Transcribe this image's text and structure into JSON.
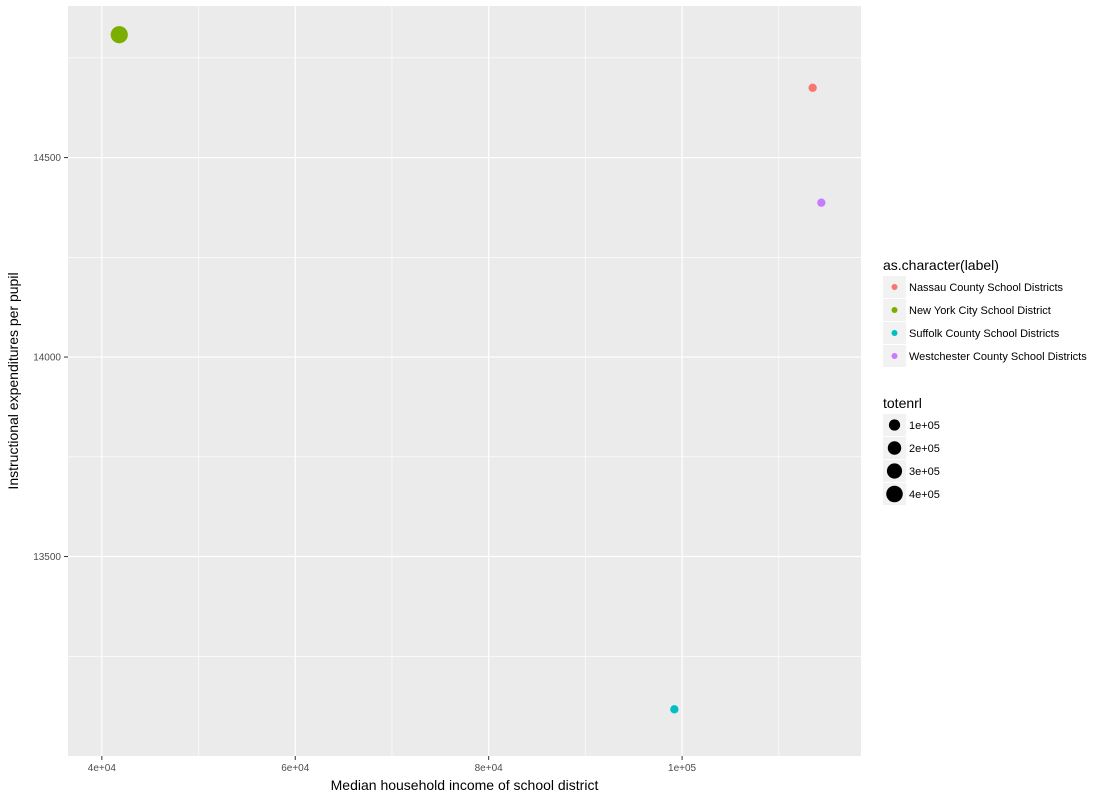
{
  "chart_data": {
    "type": "scatter",
    "title": "",
    "xlabel": "Median household income of school district",
    "ylabel": "Instructional expenditures per pupil",
    "xlim": [
      36500,
      118500
    ],
    "ylim": [
      13000,
      14880
    ],
    "x_ticks": [
      40000,
      60000,
      80000,
      100000
    ],
    "x_tick_labels": [
      "4e+04",
      "6e+04",
      "8e+04",
      "1e+05"
    ],
    "x_minor_ticks": [
      50000,
      70000,
      90000,
      110000
    ],
    "y_ticks": [
      13500,
      14000,
      14500
    ],
    "y_tick_labels": [
      "13500",
      "14000",
      "14500"
    ],
    "y_minor_ticks": [
      13250,
      13750,
      14250,
      14750
    ],
    "grid": true,
    "points": [
      {
        "label": "Nassau County School Districts",
        "x": 113500,
        "y": 14675,
        "totenrl": 20000,
        "color": "#F8766D"
      },
      {
        "label": "New York City School District",
        "x": 41800,
        "y": 14808,
        "totenrl": 450000,
        "color": "#7CAE00"
      },
      {
        "label": "Suffolk County School Districts",
        "x": 99200,
        "y": 13117,
        "totenrl": 20000,
        "color": "#00BFC4"
      },
      {
        "label": "Westchester County School Districts",
        "x": 114400,
        "y": 14387,
        "totenrl": 20000,
        "color": "#C77CFF"
      }
    ],
    "legend_color": {
      "title": "as.character(label)",
      "position": "right",
      "entries": [
        {
          "label": "Nassau County School Districts",
          "color": "#F8766D"
        },
        {
          "label": "New York City School District",
          "color": "#7CAE00"
        },
        {
          "label": "Suffolk County School Districts",
          "color": "#00BFC4"
        },
        {
          "label": "Westchester County School Districts",
          "color": "#C77CFF"
        }
      ]
    },
    "legend_size": {
      "title": "totenrl",
      "position": "right",
      "entries": [
        {
          "label": "1e+05",
          "value": 100000
        },
        {
          "label": "2e+05",
          "value": 200000
        },
        {
          "label": "3e+05",
          "value": 300000
        },
        {
          "label": "4e+05",
          "value": 400000
        }
      ]
    }
  }
}
